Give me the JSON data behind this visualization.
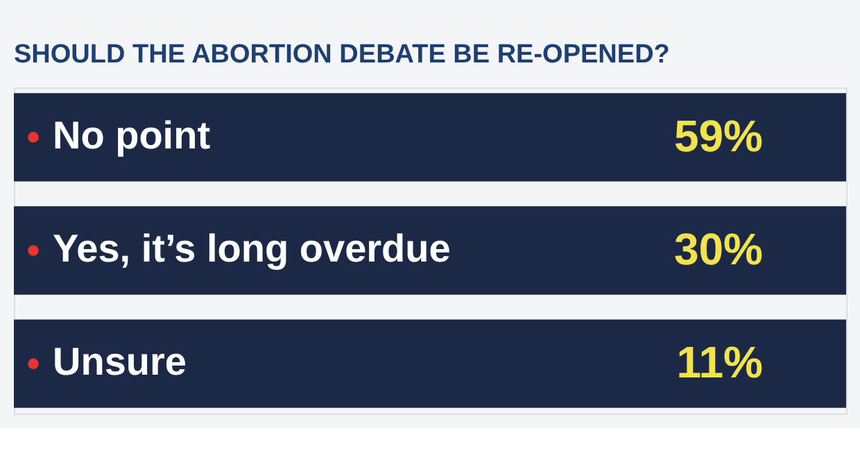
{
  "chart_data": {
    "type": "other",
    "title": "SHOULD THE ABORTION DEBATE BE RE-OPENED?",
    "categories": [
      "No point",
      "Yes, it’s long overdue",
      "Unsure"
    ],
    "values": [
      59,
      30,
      11
    ],
    "value_labels": [
      "59%",
      "30%",
      "11%"
    ],
    "colors": [
      "#1b2947",
      "#1b2947",
      "#1b2947"
    ]
  }
}
